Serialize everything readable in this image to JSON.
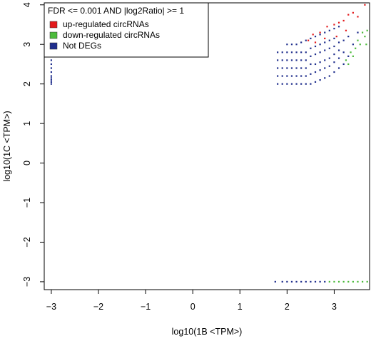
{
  "chart_data": {
    "type": "scatter",
    "title": "",
    "xlabel": "log10(1B <TPM>)",
    "ylabel": "log10(1C <TPM>)",
    "xlim": [
      -3.15,
      3.75
    ],
    "ylim": [
      -3.2,
      4.05
    ],
    "x_ticks": [
      -3,
      -2,
      -1,
      0,
      1,
      2,
      3
    ],
    "y_ticks": [
      -3,
      -2,
      -1,
      0,
      1,
      2,
      3,
      4
    ],
    "grid": false,
    "legend": {
      "position": "top-left",
      "title": "FDR <=  0.001  AND |log2Ratio| >=  1",
      "entries": [
        {
          "label": "up-regulated circRNAs",
          "color": "#e31a1c"
        },
        {
          "label": "down-regulated circRNAs",
          "color": "#4cbb3c"
        },
        {
          "label": "Not DEGs",
          "color": "#1f2e8c"
        }
      ]
    },
    "series": [
      {
        "name": "up-regulated circRNAs",
        "color": "#e31a1c",
        "x": [
          -3,
          -3,
          -3,
          -3,
          -3,
          2.55,
          2.7,
          2.85,
          3.0,
          3.1,
          3.2,
          3.3,
          3.4,
          3.5,
          3.65,
          2.6,
          2.8,
          3.05,
          3.25,
          2.45
        ],
        "y": [
          3.4,
          3.25,
          3.1,
          2.95,
          2.8,
          3.25,
          3.3,
          3.45,
          3.5,
          3.55,
          3.6,
          3.75,
          3.8,
          3.7,
          4.0,
          3.05,
          3.15,
          3.2,
          3.35,
          3.1
        ]
      },
      {
        "name": "down-regulated circRNAs",
        "color": "#4cbb3c",
        "x": [
          2.9,
          3.0,
          3.1,
          3.2,
          3.3,
          3.4,
          3.5,
          3.6,
          3.7,
          3.35,
          3.45,
          3.55,
          3.65,
          3.7,
          3.25,
          3.3,
          3.4,
          3.5,
          3.6,
          3.68
        ],
        "y": [
          -3,
          -3,
          -3,
          -3,
          -3,
          -3,
          -3,
          -3,
          -3,
          2.8,
          2.9,
          3.0,
          3.2,
          3.35,
          2.6,
          2.5,
          2.7,
          3.1,
          3.3,
          3.0
        ]
      },
      {
        "name": "Not DEGs",
        "color": "#1f2e8c",
        "x": [
          -3,
          -3,
          -3,
          -3,
          -3,
          -3,
          -3,
          -3,
          -3,
          -3,
          1.8,
          1.8,
          1.8,
          1.8,
          1.8,
          1.9,
          1.9,
          1.9,
          1.9,
          1.9,
          2.0,
          2.0,
          2.0,
          2.0,
          2.0,
          2.0,
          2.1,
          2.1,
          2.1,
          2.1,
          2.1,
          2.1,
          2.2,
          2.2,
          2.2,
          2.2,
          2.2,
          2.2,
          2.3,
          2.3,
          2.3,
          2.3,
          2.3,
          2.3,
          2.4,
          2.4,
          2.4,
          2.4,
          2.4,
          2.4,
          2.5,
          2.5,
          2.5,
          2.5,
          2.5,
          2.5,
          2.6,
          2.6,
          2.6,
          2.6,
          2.6,
          2.6,
          2.7,
          2.7,
          2.7,
          2.7,
          2.7,
          2.7,
          2.8,
          2.8,
          2.8,
          2.8,
          2.8,
          2.8,
          2.9,
          2.9,
          2.9,
          2.9,
          2.9,
          2.9,
          3.0,
          3.0,
          3.0,
          3.0,
          3.0,
          3.0,
          3.1,
          3.1,
          3.1,
          3.1,
          3.1,
          3.2,
          3.2,
          3.2,
          3.3,
          3.3,
          3.4,
          3.5,
          1.75,
          1.9,
          2.0,
          2.1,
          2.2,
          2.3,
          2.4,
          2.5,
          2.6,
          2.7,
          2.8
        ],
        "y": [
          2.7,
          2.6,
          2.5,
          2.4,
          2.3,
          2.2,
          2.15,
          2.1,
          2.05,
          2.0,
          2.0,
          2.2,
          2.4,
          2.6,
          2.8,
          2.0,
          2.2,
          2.4,
          2.6,
          2.8,
          2.0,
          2.2,
          2.4,
          2.6,
          2.8,
          3.0,
          2.0,
          2.2,
          2.4,
          2.6,
          2.8,
          3.0,
          2.0,
          2.2,
          2.4,
          2.6,
          2.8,
          3.0,
          2.0,
          2.2,
          2.4,
          2.6,
          2.8,
          3.05,
          2.0,
          2.2,
          2.4,
          2.6,
          2.8,
          3.1,
          2.0,
          2.25,
          2.5,
          2.7,
          2.9,
          3.15,
          2.05,
          2.3,
          2.5,
          2.75,
          2.95,
          3.2,
          2.1,
          2.35,
          2.55,
          2.8,
          3.0,
          3.25,
          2.15,
          2.4,
          2.6,
          2.85,
          3.05,
          3.3,
          2.2,
          2.45,
          2.65,
          2.9,
          3.1,
          3.35,
          2.3,
          2.55,
          2.75,
          2.95,
          3.15,
          3.4,
          2.4,
          2.65,
          2.85,
          3.05,
          3.45,
          2.5,
          2.8,
          3.1,
          2.7,
          3.2,
          3.0,
          3.3,
          -3,
          -3,
          -3,
          -3,
          -3,
          -3,
          -3,
          -3,
          -3,
          -3,
          -3
        ]
      }
    ]
  }
}
